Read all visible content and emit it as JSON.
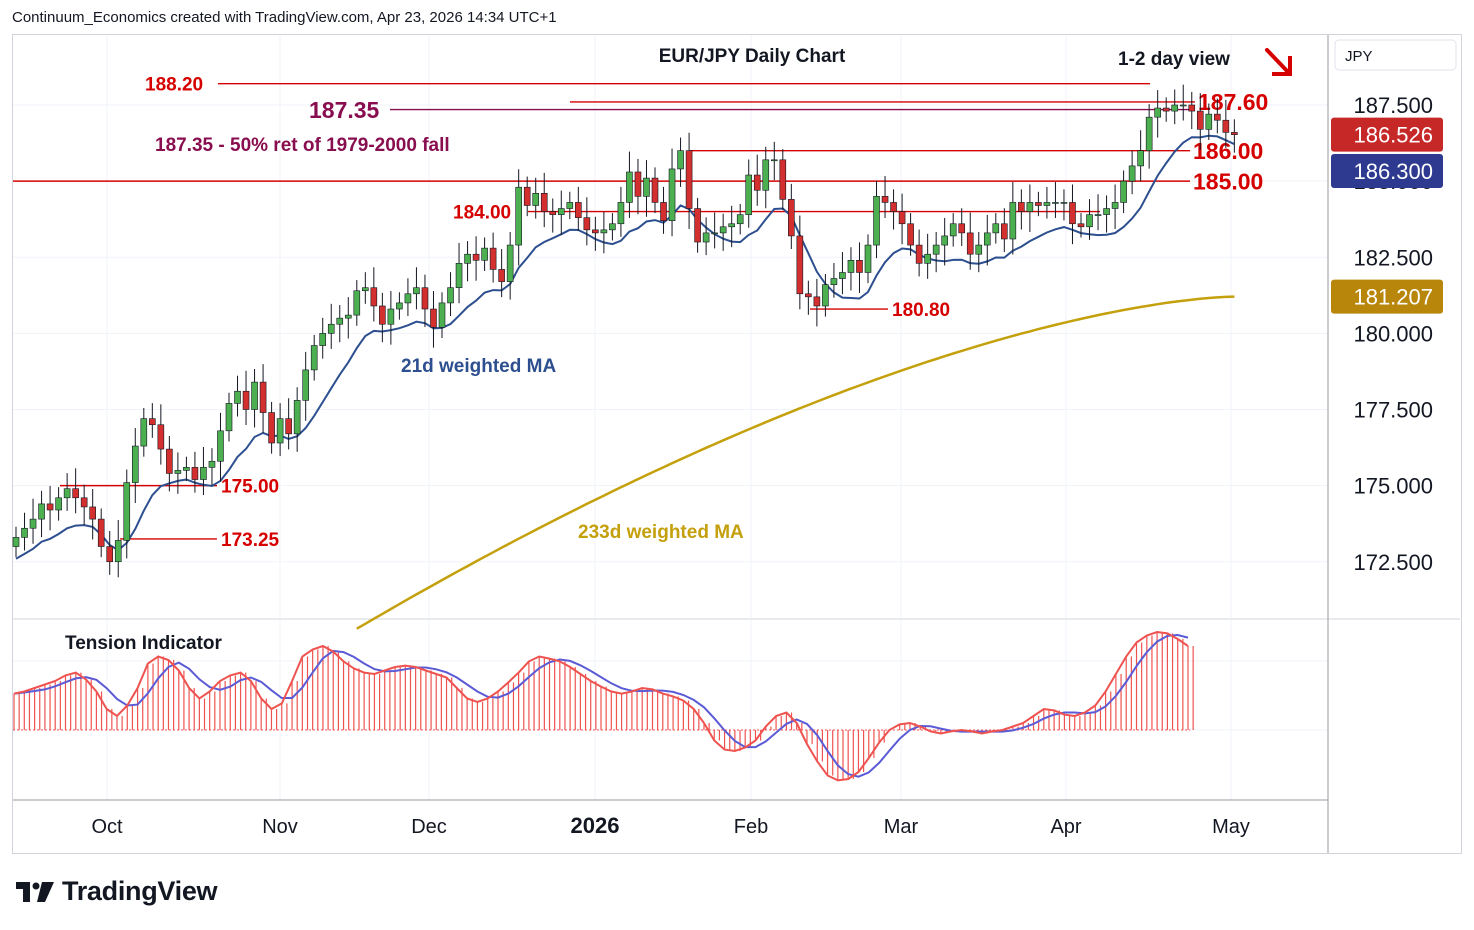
{
  "header": {
    "credit": "Continuum_Economics created with TradingView.com, Apr 23, 2026 14:34 UTC+1"
  },
  "brand": {
    "logo_text": "TradingView",
    "logo_icon": "tradingview-logo-icon"
  },
  "colors": {
    "up": "#4caf50",
    "down": "#d32f2f",
    "level": "#d50000",
    "retrace": "#880e4f",
    "ma21": "#2d4f8f",
    "ma233": "#c4a00c",
    "tension_bar": "#ef5350",
    "tension_signal": "#5b5bd6",
    "last_price_bg": "#c62828",
    "ma21_label_bg": "#2d3a8f",
    "ma233_label_bg": "#b8860b"
  },
  "chart_data": [
    {
      "type": "candlestick",
      "title": "EUR/JPY Daily Chart",
      "subtitle": "1-2 day view",
      "direction_icon": "down-right-arrow-icon",
      "currency_label": "JPY",
      "x_labels": [
        "Oct",
        "Nov",
        "Dec",
        "2026",
        "Feb",
        "Mar",
        "Apr",
        "May"
      ],
      "y_ticks": [
        172.5,
        175.0,
        177.5,
        180.0,
        182.5,
        187.5
      ],
      "ylim": [
        170.5,
        189.5
      ],
      "price_labels": [
        {
          "text": "186.526",
          "value": 186.526,
          "color": "#c62828"
        },
        {
          "text": "186.300",
          "value": 186.3,
          "color": "#2d3a8f"
        },
        {
          "text": "181.207",
          "value": 181.207,
          "color": "#b8860b"
        }
      ],
      "levels": [
        {
          "value": 188.2,
          "label": "188.20"
        },
        {
          "value": 187.6,
          "label": "187.60"
        },
        {
          "value": 187.35,
          "label": "187.35"
        },
        {
          "value": 186.0,
          "label": "186.00"
        },
        {
          "value": 185.0,
          "label": "185.00"
        },
        {
          "value": 184.0,
          "label": "184.00"
        },
        {
          "value": 180.8,
          "label": "180.80"
        },
        {
          "value": 175.0,
          "label": "175.00"
        },
        {
          "value": 173.25,
          "label": "173.25"
        }
      ],
      "annotations": {
        "retracement": "187.35 - 50% ret of 1979-2000 fall",
        "ma21": "21d weighted MA",
        "ma233": "233d weighted MA"
      },
      "closes": [
        173.3,
        173.6,
        173.9,
        174.4,
        174.2,
        174.6,
        174.9,
        174.6,
        174.3,
        173.9,
        173.0,
        172.5,
        173.2,
        175.1,
        176.3,
        177.2,
        177.0,
        176.2,
        175.4,
        175.5,
        175.6,
        175.2,
        175.6,
        175.8,
        176.8,
        177.7,
        178.1,
        177.5,
        178.4,
        177.4,
        176.4,
        177.2,
        176.7,
        177.8,
        178.8,
        179.6,
        180.0,
        180.3,
        180.5,
        180.6,
        181.4,
        181.5,
        180.9,
        180.3,
        180.8,
        181.0,
        181.3,
        181.5,
        180.8,
        180.2,
        181.0,
        181.5,
        182.3,
        182.6,
        182.4,
        182.8,
        182.1,
        181.7,
        182.9,
        184.8,
        184.2,
        184.6,
        184.0,
        183.9,
        184.1,
        184.3,
        183.8,
        183.4,
        183.3,
        183.4,
        183.6,
        184.3,
        185.3,
        184.5,
        185.1,
        184.3,
        183.7,
        185.4,
        186.0,
        184.1,
        183.0,
        183.3,
        183.3,
        183.5,
        183.6,
        183.9,
        185.2,
        184.7,
        185.7,
        185.7,
        184.4,
        183.2,
        181.3,
        181.2,
        180.9,
        181.6,
        181.8,
        182.0,
        182.4,
        182.0,
        182.9,
        184.5,
        184.3,
        184.0,
        183.6,
        182.9,
        182.3,
        182.6,
        182.9,
        183.2,
        183.6,
        183.3,
        182.6,
        182.9,
        183.3,
        183.6,
        183.1,
        184.3,
        184.0,
        184.3,
        184.2,
        184.3,
        184.3,
        184.3,
        183.6,
        183.5,
        183.9,
        183.9,
        184.1,
        184.3,
        185.0,
        185.5,
        186.0,
        187.1,
        187.4,
        187.3,
        187.5,
        187.5,
        187.3,
        186.7,
        187.2,
        187.0,
        186.6,
        186.526
      ]
    },
    {
      "type": "bar",
      "title": "Tension Indicator",
      "values": [
        0.52,
        0.55,
        0.6,
        0.65,
        0.7,
        0.78,
        0.82,
        0.72,
        0.55,
        0.3,
        0.2,
        0.35,
        0.6,
        0.95,
        1.05,
        1.0,
        0.85,
        0.6,
        0.45,
        0.55,
        0.7,
        0.78,
        0.82,
        0.7,
        0.45,
        0.3,
        0.38,
        0.7,
        1.05,
        1.15,
        1.2,
        1.12,
        0.98,
        0.88,
        0.82,
        0.8,
        0.85,
        0.9,
        0.92,
        0.9,
        0.85,
        0.8,
        0.75,
        0.6,
        0.45,
        0.4,
        0.45,
        0.55,
        0.68,
        0.82,
        0.98,
        1.05,
        1.02,
        0.98,
        0.9,
        0.8,
        0.7,
        0.62,
        0.55,
        0.52,
        0.55,
        0.6,
        0.58,
        0.52,
        0.48,
        0.42,
        0.3,
        0.1,
        -0.15,
        -0.28,
        -0.3,
        -0.25,
        -0.15,
        0.05,
        0.2,
        0.25,
        0.1,
        -0.2,
        -0.45,
        -0.65,
        -0.72,
        -0.7,
        -0.6,
        -0.4,
        -0.18,
        0.0,
        0.08,
        0.1,
        0.05,
        -0.02,
        -0.05,
        -0.02,
        0.0,
        -0.02,
        -0.05,
        -0.02,
        0.0,
        0.05,
        0.1,
        0.2,
        0.3,
        0.28,
        0.22,
        0.2,
        0.25,
        0.35,
        0.55,
        0.8,
        1.05,
        1.25,
        1.35,
        1.4,
        1.38,
        1.3,
        1.2
      ],
      "ylim": [
        -0.9,
        1.6
      ]
    }
  ]
}
